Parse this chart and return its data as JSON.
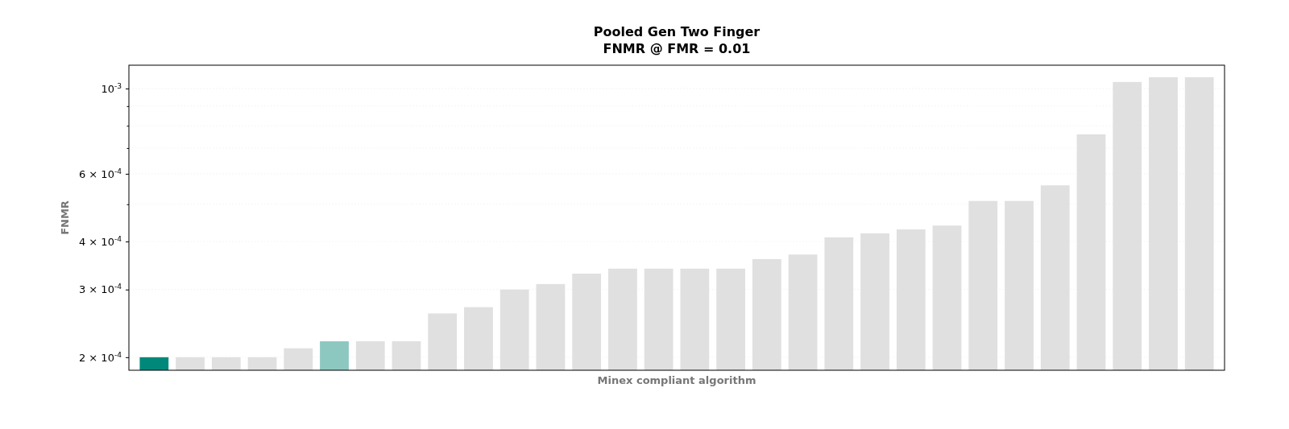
{
  "chart_data": {
    "type": "bar",
    "title": "Pooled Gen Two Finger",
    "subtitle": "FNMR @ FMR = 0.01",
    "xlabel": "Minex compliant algorithm",
    "ylabel": "FNMR",
    "categories": [
      null,
      null,
      null,
      null,
      null,
      null,
      null,
      null,
      null,
      null,
      null,
      null,
      null,
      null,
      null,
      null,
      null,
      null,
      null,
      null,
      null,
      null,
      null,
      null,
      null,
      null,
      null,
      null,
      null,
      null
    ],
    "values": [
      0.0002,
      0.0002,
      0.0002,
      0.0002,
      0.000211,
      0.00022,
      0.00022,
      0.00022,
      0.00026,
      0.00027,
      0.0003,
      0.00031,
      0.00033,
      0.00034,
      0.00034,
      0.00034,
      0.00034,
      0.00036,
      0.00037,
      0.00041,
      0.00042,
      0.00043,
      0.00044,
      0.00051,
      0.00051,
      0.00056,
      0.00076,
      0.00104,
      0.00107,
      0.00107
    ],
    "colors": [
      "#00897b",
      "#e0e0e0",
      "#e0e0e0",
      "#e0e0e0",
      "#e0e0e0",
      "#8cc8c0",
      "#e0e0e0",
      "#e0e0e0",
      "#e0e0e0",
      "#e0e0e0",
      "#e0e0e0",
      "#e0e0e0",
      "#e0e0e0",
      "#e0e0e0",
      "#e0e0e0",
      "#e0e0e0",
      "#e0e0e0",
      "#e0e0e0",
      "#e0e0e0",
      "#e0e0e0",
      "#e0e0e0",
      "#e0e0e0",
      "#e0e0e0",
      "#e0e0e0",
      "#e0e0e0",
      "#e0e0e0",
      "#e0e0e0",
      "#e0e0e0",
      "#e0e0e0",
      "#e0e0e0"
    ],
    "log": "y",
    "ylim": [
      0.000185,
      0.00115
    ],
    "yticks": [
      {
        "value": 0.0002,
        "label": "2 × 10$^{-4}$"
      },
      {
        "value": 0.0003,
        "label": "3 × 10$^{-4}$"
      },
      {
        "value": 0.0004,
        "label": "4 × 10$^{-4}$"
      },
      {
        "value": 0.0005,
        "label": null
      },
      {
        "value": 0.0006,
        "label": "6 × 10$^{-4}$"
      },
      {
        "value": 0.0007,
        "label": null
      },
      {
        "value": 0.0008,
        "label": null
      },
      {
        "value": 0.0009,
        "label": null
      },
      {
        "value": 0.001,
        "label": "10$^{-3}$"
      }
    ],
    "grid": "y"
  }
}
